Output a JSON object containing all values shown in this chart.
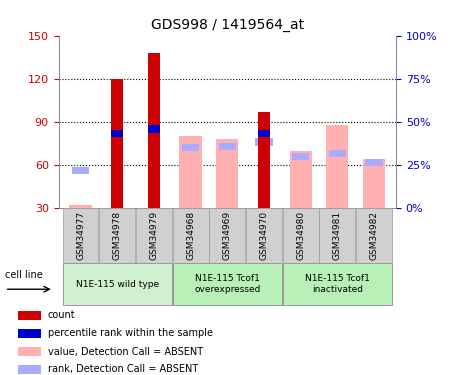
{
  "title": "GDS998 / 1419564_at",
  "samples": [
    "GSM34977",
    "GSM34978",
    "GSM34979",
    "GSM34968",
    "GSM34969",
    "GSM34970",
    "GSM34980",
    "GSM34981",
    "GSM34982"
  ],
  "count_values": [
    null,
    120,
    138,
    null,
    null,
    97,
    null,
    null,
    null
  ],
  "percentile_values": [
    null,
    82,
    85,
    null,
    null,
    82,
    null,
    null,
    null
  ],
  "absent_value_values": [
    32,
    null,
    null,
    80,
    78,
    null,
    70,
    88,
    64
  ],
  "absent_rank_values": [
    56,
    null,
    null,
    72,
    73,
    76,
    66,
    68,
    62
  ],
  "ylim_left": [
    30,
    150
  ],
  "ylim_right": [
    0,
    100
  ],
  "yticks_left": [
    30,
    60,
    90,
    120,
    150
  ],
  "yticks_right": [
    0,
    25,
    50,
    75,
    100
  ],
  "count_color": "#cc0000",
  "percentile_color": "#0000cc",
  "absent_value_color": "#ffb0b0",
  "absent_rank_color": "#aaaaff",
  "group_configs": [
    {
      "start": 0,
      "end": 2,
      "label": "N1E-115 wild type",
      "color": "#d0f0d0"
    },
    {
      "start": 3,
      "end": 5,
      "label": "N1E-115 Tcof1\noverexpressed",
      "color": "#b8f0b8"
    },
    {
      "start": 6,
      "end": 8,
      "label": "N1E-115 Tcof1\ninactivated",
      "color": "#b8f0b8"
    }
  ],
  "legend_items": [
    {
      "label": "count",
      "color": "#cc0000"
    },
    {
      "label": "percentile rank within the sample",
      "color": "#0000cc"
    },
    {
      "label": "value, Detection Call = ABSENT",
      "color": "#ffb0b0"
    },
    {
      "label": "rank, Detection Call = ABSENT",
      "color": "#aaaaff"
    }
  ]
}
